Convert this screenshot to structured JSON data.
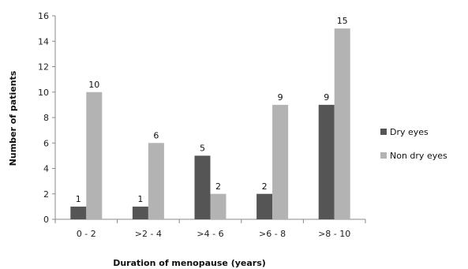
{
  "chart_data": {
    "type": "bar",
    "xlabel": "Duration of menopause (years)",
    "ylabel": "Number of patients",
    "categories": [
      "0 - 2",
      ">2 - 4",
      ">4 - 6",
      ">6 - 8",
      ">8 - 10"
    ],
    "series": [
      {
        "name": "Dry eyes",
        "values": [
          1,
          1,
          5,
          2,
          9
        ],
        "color": "#555555"
      },
      {
        "name": "Non dry eyes",
        "values": [
          10,
          6,
          2,
          9,
          15
        ],
        "color": "#b3b3b3"
      }
    ],
    "ylim": [
      0,
      16
    ],
    "yticks": [
      0,
      2,
      4,
      6,
      8,
      10,
      12,
      14,
      16
    ],
    "grid": false,
    "legend_position": "right"
  }
}
